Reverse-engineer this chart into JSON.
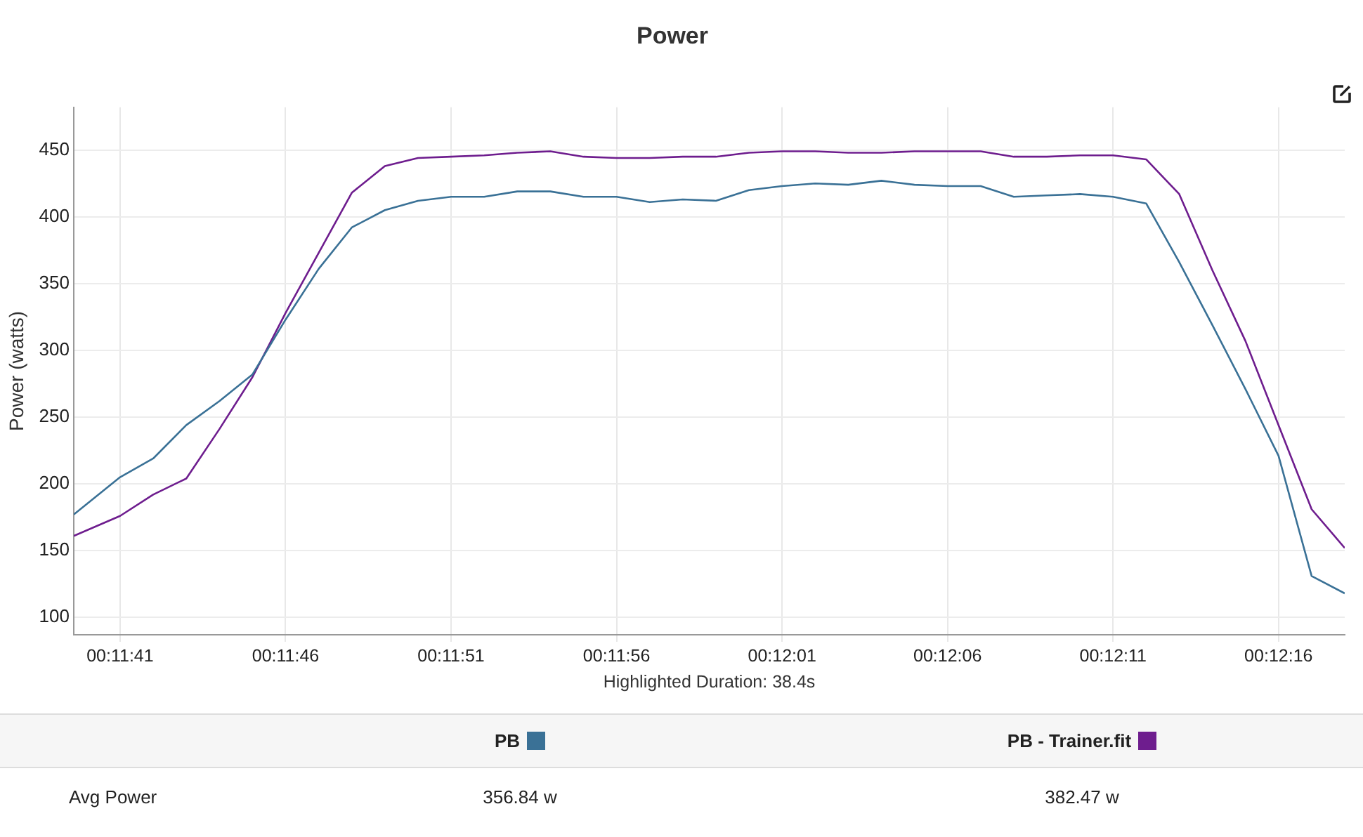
{
  "chart_data": {
    "type": "line",
    "title": "Power",
    "ylabel": "Power (watts)",
    "annotations": [
      "Highlighted Duration: 38.4s",
      "Avg Power",
      "356.84 w",
      "382.47 w"
    ],
    "x": [
      699.6,
      701,
      702,
      703,
      704,
      705,
      706,
      707,
      708,
      709,
      710,
      711,
      712,
      713,
      714,
      715,
      716,
      717,
      718,
      719,
      720,
      721,
      722,
      723,
      724,
      725,
      726,
      727,
      728,
      729,
      730,
      731,
      732,
      733,
      734,
      735,
      736,
      737,
      738
    ],
    "series": [
      {
        "name": "PB",
        "color": "#3a7196",
        "values": [
          177,
          205,
          219,
          244,
          262,
          282,
          323,
          361,
          392,
          405,
          412,
          415,
          415,
          419,
          419,
          415,
          415,
          411,
          413,
          412,
          420,
          423,
          425,
          424,
          427,
          424,
          423,
          423,
          415,
          416,
          417,
          415,
          410,
          366,
          319,
          271,
          221,
          131,
          118
        ]
      },
      {
        "name": "PB - Trainer.fit",
        "color": "#6e1d8e",
        "values": [
          161,
          176,
          192,
          204,
          241,
          280,
          328,
          373,
          418,
          438,
          444,
          445,
          446,
          448,
          449,
          445,
          444,
          444,
          445,
          445,
          448,
          449,
          449,
          448,
          448,
          449,
          449,
          449,
          445,
          445,
          446,
          446,
          443,
          417,
          360,
          307,
          244,
          181,
          152
        ]
      }
    ],
    "xlim": [
      699.6,
      738
    ],
    "xticks": [
      {
        "value": 701,
        "label": "00:11:41"
      },
      {
        "value": 706,
        "label": "00:11:46"
      },
      {
        "value": 711,
        "label": "00:11:51"
      },
      {
        "value": 716,
        "label": "00:11:56"
      },
      {
        "value": 721,
        "label": "00:12:01"
      },
      {
        "value": 726,
        "label": "00:12:06"
      },
      {
        "value": 731,
        "label": "00:12:11"
      },
      {
        "value": 736,
        "label": "00:12:16"
      }
    ],
    "ylim": [
      87,
      482
    ],
    "yticks": [
      100,
      150,
      200,
      250,
      300,
      350,
      400,
      450
    ],
    "grid": true,
    "legend": "bottom",
    "marker": "none",
    "line_style": "solid"
  }
}
